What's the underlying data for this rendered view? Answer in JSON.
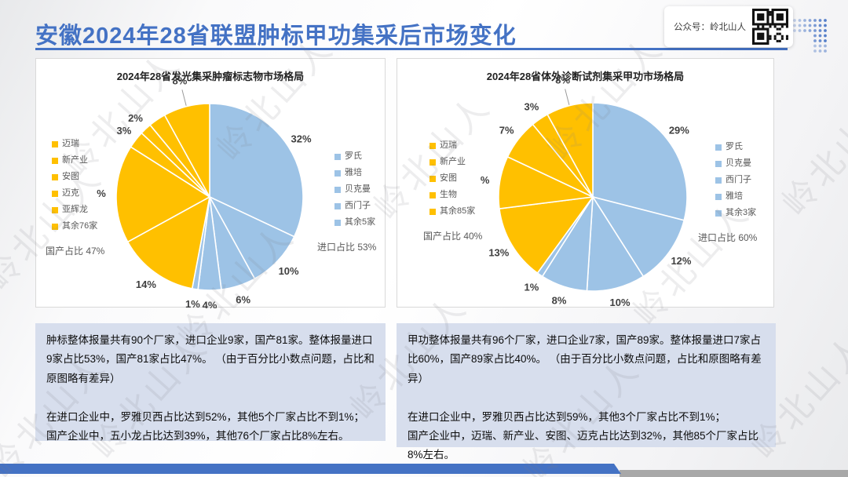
{
  "page": {
    "title": "安徽2024年28省联盟肿标甲功集采后市场变化",
    "badge_label": "公众号：岭北山人",
    "watermark": "岭北山人"
  },
  "colors": {
    "accent": "#4472C4",
    "domestic": "#FFC000",
    "import": "#9DC3E6",
    "note_bg": "#d7deed",
    "footer_gray": "#a8a8a8"
  },
  "chart_data": [
    {
      "type": "pie",
      "title": "2024年28省发光集采肿瘤标志物市场格局",
      "direction": "clockwise",
      "start_angle_deg": 0,
      "import_share": "进口占比 53%",
      "domestic_share": "国产占比 47%",
      "import_total_pct": 53,
      "domestic_total_pct": 47,
      "slices": [
        {
          "name": "罗氏",
          "value": 32,
          "group": "import",
          "label": "32%"
        },
        {
          "name": "雅培",
          "value": 10,
          "group": "import",
          "label": "10%"
        },
        {
          "name": "贝克曼",
          "value": 6,
          "group": "import",
          "label": "6%"
        },
        {
          "name": "西门子",
          "value": 4,
          "group": "import",
          "label": "4%"
        },
        {
          "name": "其余5家",
          "value": 1,
          "group": "import",
          "label": "1%"
        },
        {
          "name": "迈瑞",
          "value": 14,
          "group": "domestic",
          "label": "14%"
        },
        {
          "name": "新产业",
          "value": 17,
          "group": "domestic",
          "label": "%"
        },
        {
          "name": "安图",
          "value": 3,
          "group": "domestic",
          "label": "3%"
        },
        {
          "name": "迈克",
          "value": 2,
          "group": "domestic",
          "label": "2%"
        },
        {
          "name": "亚辉龙",
          "value": 3,
          "group": "domestic",
          "label": ""
        },
        {
          "name": "其余76家",
          "value": 8,
          "group": "domestic",
          "label": "8%",
          "leader": true
        }
      ]
    },
    {
      "type": "pie",
      "title": "2024年28省体外诊断试剂集采甲功市场格局",
      "direction": "clockwise",
      "start_angle_deg": 0,
      "import_share": "进口占比 60%",
      "domestic_share": "国产占比 40%",
      "import_total_pct": 60,
      "domestic_total_pct": 40,
      "slices": [
        {
          "name": "罗氏",
          "value": 29,
          "group": "import",
          "label": "29%"
        },
        {
          "name": "贝克曼",
          "value": 12,
          "group": "import",
          "label": "12%"
        },
        {
          "name": "西门子",
          "value": 10,
          "group": "import",
          "label": "10%"
        },
        {
          "name": "雅培",
          "value": 8,
          "group": "import",
          "label": "8%"
        },
        {
          "name": "其余3家",
          "value": 1,
          "group": "import",
          "label": "1%"
        },
        {
          "name": "迈瑞",
          "value": 13,
          "group": "domestic",
          "label": "13%"
        },
        {
          "name": "新产业",
          "value": 9,
          "group": "domestic",
          "label": "%"
        },
        {
          "name": "安图",
          "value": 7,
          "group": "domestic",
          "label": "7%"
        },
        {
          "name": "生物",
          "value": 3,
          "group": "domestic",
          "label": "3%"
        },
        {
          "name": "其余85家",
          "value": 8,
          "group": "domestic",
          "label": "8%",
          "leader": true
        }
      ]
    }
  ],
  "notes": [
    {
      "p1": "肿标整体报量共有90个厂家，进口企业9家，国产81家。整体报量进口9家占比53%，国产81家占比47%。 （由于百分比小数点问题，占比和原图略有差异）",
      "p2": "在进口企业中，罗雅贝西占比达到52%，其他5个厂家占比不到1%；\n国产企业中，五小龙占比达到39%，其他76个厂家占比8%左右。"
    },
    {
      "p1": "甲功整体报量共有96个厂家，进口企业7家，国产89家。整体报量进口7家占比60%，国产89家占比40%。 （由于百分比小数点问题，占比和原图略有差异）",
      "p2": "在进口企业中，罗雅贝西占比达到59%，其他3个厂家占比不到1%；\n国产企业中，迈瑞、新产业、安图、迈克占比达到32%，其他85个厂家占比8%左右。"
    }
  ]
}
